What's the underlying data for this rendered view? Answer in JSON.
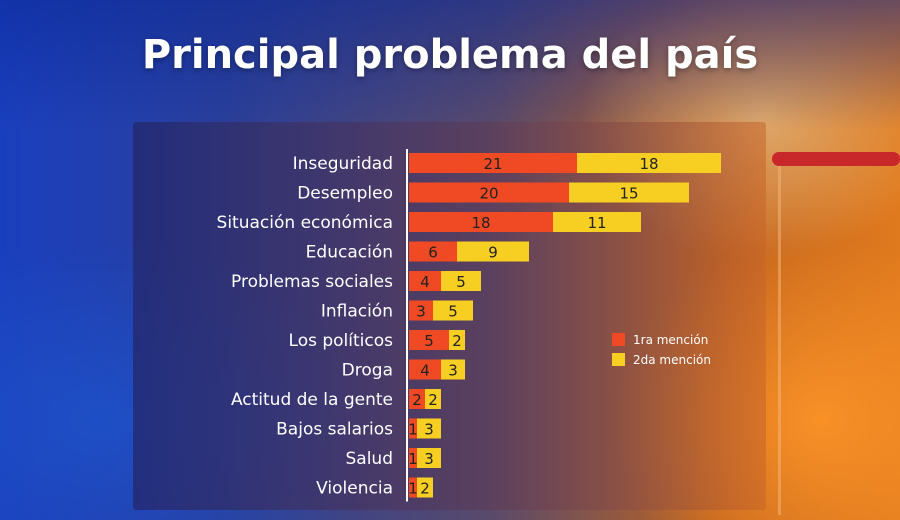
{
  "title": "Principal problema del país",
  "colors": {
    "series1": "#f04a24",
    "series2": "#f7cf23",
    "axis": "#ffffff"
  },
  "chart_data": {
    "type": "bar",
    "orientation": "horizontal",
    "stacked": true,
    "title": "Principal problema del país",
    "categories": [
      "Inseguridad",
      "Desempleo",
      "Situación económica",
      "Educación",
      "Problemas sociales",
      "Inflación",
      "Los políticos",
      "Droga",
      "Actitud de la gente",
      "Bajos salarios",
      "Salud",
      "Violencia"
    ],
    "series": [
      {
        "name": "1ra mención",
        "values": [
          21,
          20,
          18,
          6,
          4,
          3,
          5,
          4,
          2,
          1,
          1,
          1
        ]
      },
      {
        "name": "2da mención",
        "values": [
          18,
          15,
          11,
          9,
          5,
          5,
          2,
          3,
          2,
          3,
          3,
          2
        ]
      }
    ],
    "xlim": [
      0,
      40
    ],
    "grid": false,
    "legend": "right"
  }
}
